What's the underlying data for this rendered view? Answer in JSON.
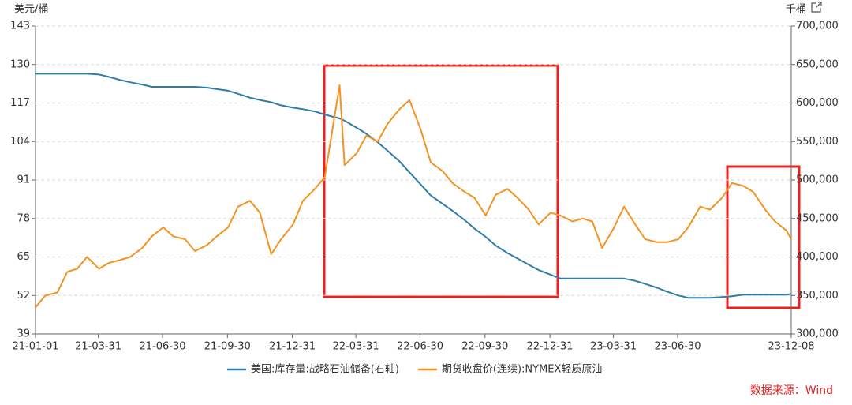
{
  "chart_data": {
    "type": "line",
    "y_label": "美元/桶",
    "y2_label": "千桶",
    "source": "数据来源：Wind",
    "x": [
      "21-01-01",
      "21-01-15",
      "21-02-01",
      "21-02-15",
      "21-03-01",
      "21-03-15",
      "21-04-01",
      "21-04-15",
      "21-05-01",
      "21-05-15",
      "21-06-01",
      "21-06-15",
      "21-07-01",
      "21-07-15",
      "21-08-01",
      "21-08-15",
      "21-09-01",
      "21-09-15",
      "21-10-01",
      "21-10-15",
      "21-11-01",
      "21-11-15",
      "21-12-01",
      "21-12-15",
      "22-01-01",
      "22-01-15",
      "22-02-01",
      "22-02-15",
      "22-03-08",
      "22-03-15",
      "22-04-01",
      "22-04-15",
      "22-05-01",
      "22-05-15",
      "22-06-01",
      "22-06-15",
      "22-07-01",
      "22-07-15",
      "22-08-01",
      "22-08-15",
      "22-09-01",
      "22-09-15",
      "22-10-01",
      "22-10-15",
      "22-11-01",
      "22-11-15",
      "22-12-01",
      "22-12-15",
      "23-01-01",
      "23-01-15",
      "23-02-01",
      "23-02-15",
      "23-03-01",
      "23-03-15",
      "23-04-01",
      "23-04-15",
      "23-05-01",
      "23-05-15",
      "23-06-01",
      "23-06-15",
      "23-07-01",
      "23-07-15",
      "23-08-01",
      "23-08-15",
      "23-09-01",
      "23-09-15",
      "23-10-01",
      "23-10-15",
      "23-11-01",
      "23-11-15",
      "23-12-01",
      "23-12-08"
    ],
    "xlim": [
      "21-01-01",
      "23-12-08"
    ],
    "xticks": [
      "21-01-01",
      "21-03-31",
      "21-06-30",
      "21-09-30",
      "21-12-31",
      "22-03-31",
      "22-06-30",
      "22-09-30",
      "22-12-31",
      "23-03-31",
      "23-06-30",
      "23-12-08"
    ],
    "ylim": [
      39,
      143
    ],
    "yticks": [
      39,
      52,
      65,
      78,
      91,
      104,
      117,
      130,
      143
    ],
    "y2lim": [
      300000,
      700000
    ],
    "y2ticks": [
      {
        "value": 300000,
        "label": "300,000"
      },
      {
        "value": 350000,
        "label": "350,000"
      },
      {
        "value": 400000,
        "label": "400,000"
      },
      {
        "value": 450000,
        "label": "450,000"
      },
      {
        "value": 500000,
        "label": "500,000"
      },
      {
        "value": 550000,
        "label": "550,000"
      },
      {
        "value": 600000,
        "label": "600,000"
      },
      {
        "value": 650000,
        "label": "650,000"
      },
      {
        "value": 700000,
        "label": "700,000"
      }
    ],
    "grid": true,
    "series": [
      {
        "name": "美国:库存量:战略石油储备(右轴)",
        "color": "#2f7dab",
        "axis": "y2",
        "values": [
          638000,
          638000,
          638000,
          638000,
          638000,
          638000,
          637000,
          634000,
          630000,
          627000,
          624000,
          621000,
          621000,
          621000,
          621000,
          621000,
          620000,
          618000,
          616000,
          612000,
          607000,
          604000,
          601000,
          597000,
          594000,
          592000,
          589000,
          585000,
          580000,
          577000,
          568000,
          560000,
          549000,
          538000,
          524000,
          510000,
          494000,
          480000,
          469000,
          460000,
          448000,
          437000,
          426000,
          415000,
          405000,
          398000,
          390000,
          383000,
          377000,
          372000,
          372000,
          372000,
          372000,
          372000,
          372000,
          372000,
          369000,
          365000,
          360000,
          355000,
          350000,
          347000,
          347000,
          347000,
          348000,
          349000,
          351000,
          351000,
          351000,
          351000,
          351000,
          352000
        ]
      },
      {
        "name": "期货收盘价(连续):NYMEX轻质原油",
        "color": "#f39321",
        "values": [
          48,
          52,
          53,
          60,
          61,
          65,
          61,
          63,
          64,
          65,
          68,
          72,
          75,
          72,
          71,
          67,
          69,
          72,
          75,
          82,
          84,
          80,
          66,
          71,
          76,
          84,
          88,
          92,
          123,
          96,
          100,
          106,
          104,
          110,
          115,
          118,
          108,
          97,
          94,
          90,
          87,
          85,
          79,
          86,
          88,
          85,
          81,
          76,
          80,
          79,
          77,
          78,
          77,
          68,
          75,
          82,
          76,
          71,
          70,
          70,
          71,
          75,
          82,
          81,
          85,
          90,
          89,
          87,
          81,
          77,
          74,
          71
        ]
      }
    ]
  }
}
